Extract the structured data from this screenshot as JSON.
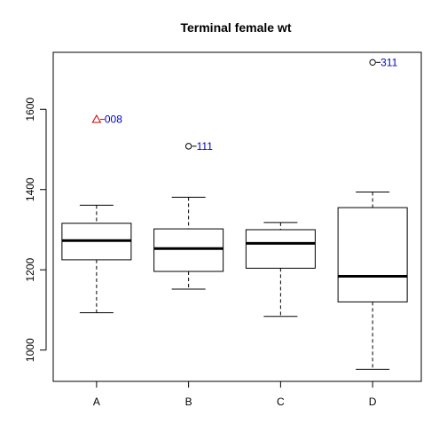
{
  "chart_data": {
    "type": "boxplot",
    "title": "Terminal female wt",
    "xlabel": "",
    "ylabel": "",
    "categories": [
      "A",
      "B",
      "C",
      "D"
    ],
    "ylim": [
      922,
      1742
    ],
    "yticks": [
      1000,
      1200,
      1400,
      1600
    ],
    "grid": false,
    "boxes": [
      {
        "category": "A",
        "whisker_low": 1093,
        "q1": 1225,
        "median": 1273,
        "q3": 1316,
        "whisker_high": 1361
      },
      {
        "category": "B",
        "whisker_low": 1152,
        "q1": 1196,
        "median": 1253,
        "q3": 1302,
        "whisker_high": 1381
      },
      {
        "category": "C",
        "whisker_low": 1084,
        "q1": 1204,
        "median": 1266,
        "q3": 1300,
        "whisker_high": 1318
      },
      {
        "category": "D",
        "whisker_low": 952,
        "q1": 1120,
        "median": 1184,
        "q3": 1355,
        "whisker_high": 1394
      }
    ],
    "outliers": [
      {
        "category": "A",
        "y": 1575,
        "label": "008",
        "marker": "triangle",
        "marker_color": "#cc0000",
        "label_color": "#0000cc"
      },
      {
        "category": "B",
        "y": 1508,
        "label": "111",
        "marker": "circle",
        "marker_color": "#000000",
        "label_color": "#0000cc"
      },
      {
        "category": "D",
        "y": 1717,
        "label": "311",
        "marker": "circle",
        "marker_color": "#000000",
        "label_color": "#0000cc"
      }
    ]
  }
}
